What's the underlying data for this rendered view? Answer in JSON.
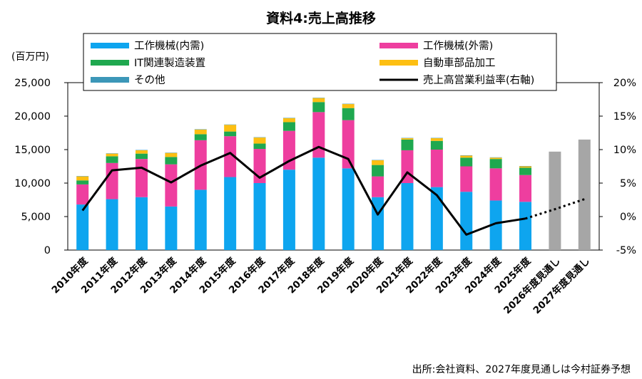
{
  "chart_data": {
    "type": "bar",
    "title": "資料4:売上高推移",
    "y_unit_label": "(百万円)",
    "source_note": "出所:会社資料、2027年度見通しは今村証券予想",
    "categories": [
      "2010年度",
      "2011年度",
      "2012年度",
      "2013年度",
      "2014年度",
      "2015年度",
      "2016年度",
      "2017年度",
      "2018年度",
      "2019年度",
      "2020年度",
      "2021年度",
      "2022年度",
      "2023年度",
      "2024年度",
      "2025年度",
      "2026年度見通し",
      "2027年度見通し"
    ],
    "ylim": [
      0,
      25000
    ],
    "y_ticks": [
      "0",
      "5,000",
      "10,000",
      "15,000",
      "20,000",
      "25,000"
    ],
    "y2lim": [
      -5,
      20
    ],
    "y2_ticks": [
      "-5%",
      "0%",
      "5%",
      "10%",
      "15%",
      "20%"
    ],
    "stack_series": [
      {
        "name": "工作機械(内需)",
        "color": "#0EA5EF",
        "values": [
          6800,
          7600,
          7900,
          6500,
          9000,
          10900,
          10000,
          12000,
          13800,
          12200,
          7900,
          10000,
          9400,
          8700,
          7400,
          7200,
          null,
          null
        ]
      },
      {
        "name": "工作機械(外需)",
        "color": "#EE3E9F",
        "values": [
          3000,
          5400,
          5700,
          6300,
          7400,
          6100,
          5100,
          5800,
          6800,
          7200,
          3100,
          4900,
          5600,
          3800,
          4800,
          4000,
          null,
          null
        ]
      },
      {
        "name": "IT関連製造装置",
        "color": "#1FA84F",
        "values": [
          600,
          1000,
          800,
          1100,
          900,
          700,
          800,
          1300,
          1500,
          1800,
          1700,
          1600,
          1300,
          1300,
          1400,
          1100,
          null,
          null
        ]
      },
      {
        "name": "自動車部品加工",
        "color": "#FDBF12",
        "values": [
          600,
          400,
          500,
          600,
          700,
          1000,
          900,
          600,
          600,
          600,
          700,
          200,
          400,
          300,
          200,
          200,
          null,
          null
        ]
      },
      {
        "name": "その他",
        "color": "#3C97B8",
        "values": [
          50,
          50,
          50,
          50,
          50,
          50,
          50,
          50,
          50,
          50,
          50,
          50,
          50,
          50,
          50,
          50,
          null,
          null
        ]
      }
    ],
    "forecast_series": {
      "name": "",
      "color": "#A6A6A6",
      "values": [
        null,
        null,
        null,
        null,
        null,
        null,
        null,
        null,
        null,
        null,
        null,
        null,
        null,
        null,
        null,
        null,
        14700,
        16500
      ]
    },
    "line_series": {
      "name": "売上高営業利益率(右軸)",
      "color": "#000000",
      "axis": "right",
      "values": [
        0.9,
        6.9,
        7.3,
        5.1,
        7.6,
        9.5,
        5.8,
        8.3,
        10.4,
        8.6,
        0.3,
        6.6,
        3.2,
        -2.7,
        -1.0,
        -0.3,
        1.1,
        2.6
      ],
      "dotted_from_index": 15
    },
    "legend": {
      "placement": "top",
      "entries": [
        {
          "label": "工作機械(内需)",
          "color": "#0EA5EF",
          "kind": "bar"
        },
        {
          "label": "工作機械(外需)",
          "color": "#EE3E9F",
          "kind": "bar"
        },
        {
          "label": "IT関連製造装置",
          "color": "#1FA84F",
          "kind": "bar"
        },
        {
          "label": "自動車部品加工",
          "color": "#FDBF12",
          "kind": "bar"
        },
        {
          "label": "その他",
          "color": "#3C97B8",
          "kind": "bar"
        },
        {
          "label": "売上高営業利益率(右軸)",
          "color": "#000000",
          "kind": "line"
        }
      ]
    },
    "grid": false
  }
}
